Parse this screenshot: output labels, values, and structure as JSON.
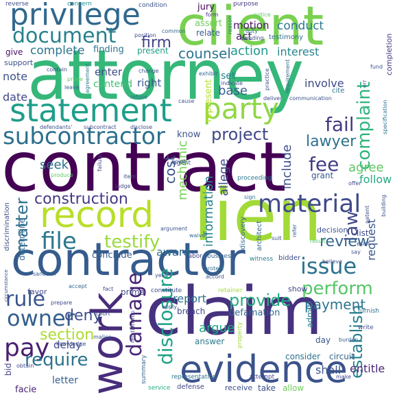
{
  "words": [
    {
      "text": "contract",
      "color": "#440154"
    },
    {
      "text": "attorney",
      "color": "#35b779"
    },
    {
      "text": "client",
      "color": "#7ad151"
    },
    {
      "text": "claim",
      "color": "#46327e"
    },
    {
      "text": "lien",
      "color": "#a2da37"
    },
    {
      "text": "contractor",
      "color": "#365c8d"
    },
    {
      "text": "evidence",
      "color": "#3b528b"
    },
    {
      "text": "work",
      "color": "#472d7b"
    },
    {
      "text": "record",
      "color": "#b8de29"
    },
    {
      "text": "statement",
      "color": "#1f9e89"
    },
    {
      "text": "privilege",
      "color": "#31688e"
    },
    {
      "text": "party",
      "color": "#8fd744"
    },
    {
      "text": "subcontractor",
      "color": "#2d708e"
    },
    {
      "text": "material",
      "color": "#3e4a89"
    },
    {
      "text": "document",
      "color": "#26828e"
    },
    {
      "text": "damage",
      "color": "#482576"
    },
    {
      "text": "disclosure",
      "color": "#1fa287"
    },
    {
      "text": "issue",
      "color": "#2c728e"
    },
    {
      "text": "construction",
      "color": "#443983"
    },
    {
      "text": "pay",
      "color": "#481f70"
    },
    {
      "text": "owner",
      "color": "#355f8d"
    },
    {
      "text": "file",
      "color": "#2a788e"
    },
    {
      "text": "complaint",
      "color": "#2fb47c"
    },
    {
      "text": "project",
      "color": "#3f4788"
    },
    {
      "text": "fail",
      "color": "#453882"
    },
    {
      "text": "fee",
      "color": "#433e85"
    },
    {
      "text": "rule",
      "color": "#3a548c"
    },
    {
      "text": "require",
      "color": "#2c728e"
    },
    {
      "text": "perform",
      "color": "#56c667"
    },
    {
      "text": "provide",
      "color": "#27ad81"
    },
    {
      "text": "testify",
      "color": "#9bd93c"
    },
    {
      "text": "establish",
      "color": "#277f8e"
    },
    {
      "text": "law",
      "color": "#404688"
    },
    {
      "text": "matter",
      "color": "#2e6f8e"
    },
    {
      "text": "section",
      "color": "#addc30"
    },
    {
      "text": "deny",
      "color": "#3d4e8a"
    },
    {
      "text": "lawyer",
      "color": "#2d708e"
    },
    {
      "text": "review",
      "color": "#32658e"
    },
    {
      "text": "payment",
      "color": "#2a768e"
    },
    {
      "text": "cost",
      "color": "#3b528b"
    },
    {
      "text": "firm",
      "color": "#404387"
    },
    {
      "text": "counsel",
      "color": "#2c738e"
    },
    {
      "text": "action",
      "color": "#1f988b"
    },
    {
      "text": "interest",
      "color": "#25858e"
    },
    {
      "text": "complete",
      "color": "#2b758e"
    },
    {
      "text": "base",
      "color": "#34618d"
    },
    {
      "text": "include",
      "color": "#3c4f8a"
    },
    {
      "text": "seek",
      "color": "#2d708e"
    },
    {
      "text": "agree",
      "color": "#5cc863"
    },
    {
      "text": "follow",
      "color": "#25ab82"
    },
    {
      "text": "information",
      "color": "#26828e"
    },
    {
      "text": "allege",
      "color": "#3e4c8a"
    },
    {
      "text": "mechanic",
      "color": "#75d054"
    },
    {
      "text": "request",
      "color": "#3a538b"
    },
    {
      "text": "argue",
      "color": "#22a884"
    },
    {
      "text": "report",
      "color": "#2c728e"
    },
    {
      "text": "award",
      "color": "#2f6c8e"
    },
    {
      "text": "conduct",
      "color": "#2a778e"
    },
    {
      "text": "motion",
      "color": "#471365"
    },
    {
      "text": "note",
      "color": "#3b528b"
    },
    {
      "text": "date",
      "color": "#3f4889"
    },
    {
      "text": "enter",
      "color": "#3e4989"
    },
    {
      "text": "right",
      "color": "#3b528b"
    },
    {
      "text": "contend",
      "color": "#43bf71"
    },
    {
      "text": "finding",
      "color": "#2c718e"
    },
    {
      "text": "present",
      "color": "#1f9f88"
    },
    {
      "text": "relate",
      "color": "#365d8d"
    },
    {
      "text": "assert",
      "color": "#6ece58"
    },
    {
      "text": "jury",
      "color": "#440256"
    },
    {
      "text": "act",
      "color": "#481668"
    },
    {
      "text": "involve",
      "color": "#3e4a89"
    },
    {
      "text": "set",
      "color": "#26828e"
    },
    {
      "text": "know",
      "color": "#3a548c"
    },
    {
      "text": "delay",
      "color": "#3f4788"
    },
    {
      "text": "letter",
      "color": "#34608d"
    },
    {
      "text": "conclude",
      "color": "#355e8d"
    },
    {
      "text": "determine",
      "color": "#31678e"
    },
    {
      "text": "discrimination",
      "color": "#3c4f8a"
    },
    {
      "text": "give",
      "color": "#471164"
    },
    {
      "text": "support",
      "color": "#3b528b"
    },
    {
      "text": "testimony",
      "color": "#2c718e"
    },
    {
      "text": "completion",
      "color": "#453581"
    },
    {
      "text": "cite",
      "color": "#2b758e"
    },
    {
      "text": "represent",
      "color": "#b5de2b"
    },
    {
      "text": "defamation",
      "color": "#31688e"
    },
    {
      "text": "breach",
      "color": "#3f4889"
    },
    {
      "text": "answer",
      "color": "#2a788e"
    },
    {
      "text": "grant",
      "color": "#39568c"
    },
    {
      "text": "day",
      "color": "#3a548c"
    },
    {
      "text": "consider",
      "color": "#2c728e"
    },
    {
      "text": "circuit",
      "color": "#33638d"
    },
    {
      "text": "show",
      "color": "#3f4889"
    },
    {
      "text": "shall",
      "color": "#3a548c"
    },
    {
      "text": "entitle",
      "color": "#482475"
    },
    {
      "text": "admit",
      "color": "#287d8e"
    },
    {
      "text": "allow",
      "color": "#6ccd5a"
    },
    {
      "text": "take",
      "color": "#3b528b"
    },
    {
      "text": "receive",
      "color": "#3c4f8a"
    },
    {
      "text": "defense",
      "color": "#404588"
    },
    {
      "text": "service",
      "color": "#25ac82"
    },
    {
      "text": "facie",
      "color": "#482374"
    },
    {
      "text": "bid",
      "color": "#423f85"
    },
    {
      "text": "prima",
      "color": "#3f4889"
    },
    {
      "text": "favor",
      "color": "#3e4a89"
    },
    {
      "text": "condition",
      "color": "#3b518b"
    },
    {
      "text": "purpose",
      "color": "#443b84"
    },
    {
      "text": "concern",
      "color": "#21918c"
    },
    {
      "text": "reverse",
      "color": "#3e4c8a"
    },
    {
      "text": "form",
      "color": "#46337f"
    },
    {
      "text": "notice",
      "color": "#5ec962"
    },
    {
      "text": "duty",
      "color": "#2b748e"
    },
    {
      "text": "refuse",
      "color": "#2d708e"
    },
    {
      "text": "cause",
      "color": "#3a548c"
    },
    {
      "text": "proceeding",
      "color": "#2a788e"
    },
    {
      "text": "agent",
      "color": "#3d4d8a"
    },
    {
      "text": "discovery",
      "color": "#2f6b8e"
    },
    {
      "text": "architect",
      "color": "#31678e"
    },
    {
      "text": "decision",
      "color": "#3b518b"
    },
    {
      "text": "list",
      "color": "#3e4989"
    },
    {
      "text": "witness",
      "color": "#27808e"
    },
    {
      "text": "bidder",
      "color": "#3d4d8a"
    },
    {
      "text": "labor",
      "color": "#424086"
    },
    {
      "text": "business",
      "color": "#34608d"
    },
    {
      "text": "protect",
      "color": "#2f6c8e"
    },
    {
      "text": "accord",
      "color": "#3a538b"
    },
    {
      "text": "retainer",
      "color": "#a5db36"
    },
    {
      "text": "constitute",
      "color": "#3e4a89"
    },
    {
      "text": "property",
      "color": "#9dd93b"
    },
    {
      "text": "relationship",
      "color": "#3e4989"
    },
    {
      "text": "representation",
      "color": "#2c738e"
    },
    {
      "text": "attempt",
      "color": "#3f4788"
    },
    {
      "text": "summary",
      "color": "#33638d"
    },
    {
      "text": "argument",
      "color": "#3b528b"
    },
    {
      "text": "point",
      "color": "#3b528b"
    },
    {
      "text": "waiver",
      "color": "#30698e"
    },
    {
      "text": "sign",
      "color": "#2d708e"
    },
    {
      "text": "suit",
      "color": "#3e4c8a"
    },
    {
      "text": "result",
      "color": "#52c569"
    },
    {
      "text": "refer",
      "color": "#365c8d"
    },
    {
      "text": "exist",
      "color": "#3d4e8a"
    },
    {
      "text": "believe",
      "color": "#3e4c8a"
    },
    {
      "text": "say",
      "color": "#3b528b"
    },
    {
      "text": "furnish",
      "color": "#2e6e8e"
    },
    {
      "text": "write",
      "color": "#3c508b"
    },
    {
      "text": "burden",
      "color": "#355f8d"
    },
    {
      "text": "make",
      "color": "#3e4989"
    },
    {
      "text": "offer",
      "color": "#3e4c8a"
    },
    {
      "text": "patent",
      "color": "#3c4f8a"
    },
    {
      "text": "building",
      "color": "#3b528b"
    },
    {
      "text": "specification",
      "color": "#2c718e"
    },
    {
      "text": "fund",
      "color": "#3a548c"
    },
    {
      "text": "err",
      "color": "#3b528b"
    },
    {
      "text": "contain",
      "color": "#3f4788"
    },
    {
      "text": "leave",
      "color": "#34618d"
    },
    {
      "text": "agreement",
      "color": "#2a788e"
    },
    {
      "text": "prove",
      "color": "#5cc863"
    },
    {
      "text": "change",
      "color": "#3b528b"
    },
    {
      "text": "exhibit",
      "color": "#31688e"
    },
    {
      "text": "indicate",
      "color": "#3f4889"
    },
    {
      "text": "deliver",
      "color": "#3e4989"
    },
    {
      "text": "communication",
      "color": "#3b528b"
    },
    {
      "text": "practice",
      "color": "#3e4c8a"
    },
    {
      "text": "requirement",
      "color": "#2f6c8e"
    },
    {
      "text": "reason",
      "color": "#2a778e"
    },
    {
      "text": "pending",
      "color": "#3e4a89"
    },
    {
      "text": "position",
      "color": "#3e4c8a"
    },
    {
      "text": "common",
      "color": "#31678e"
    },
    {
      "text": "defendants'",
      "color": "#3b528b"
    },
    {
      "text": "subcontract",
      "color": "#3e4989"
    },
    {
      "text": "disclose",
      "color": "#3e4c8a"
    },
    {
      "text": "failure",
      "color": "#3f4788"
    },
    {
      "text": "produce",
      "color": "#5cc863"
    },
    {
      "text": "judge",
      "color": "#3e4989"
    },
    {
      "text": "item",
      "color": "#3b528b"
    },
    {
      "text": "knowledge",
      "color": "#3e4c8a"
    },
    {
      "text": "obtain",
      "color": "#3f4788"
    },
    {
      "text": "sanction",
      "color": "#33638d"
    },
    {
      "text": "prepare",
      "color": "#3e4989"
    },
    {
      "text": "malice",
      "color": "#3b528b"
    },
    {
      "text": "year",
      "color": "#3e4c8a"
    },
    {
      "text": "apply",
      "color": "#3b528b"
    },
    {
      "text": "court",
      "color": "#3f4788"
    },
    {
      "text": "circumstance",
      "color": "#3e4c8a"
    },
    {
      "text": "accept",
      "color": "#31688e"
    },
    {
      "text": "fact",
      "color": "#3e4a89"
    }
  ]
}
